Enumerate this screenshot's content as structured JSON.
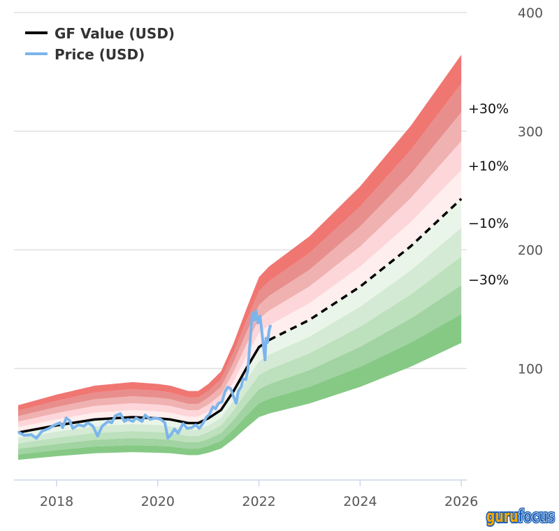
{
  "chart_data": {
    "type": "line",
    "title": "",
    "xlabel": "",
    "ylabel": "",
    "xlim": [
      2017.24,
      2026.0
    ],
    "ylim": [
      6,
      400
    ],
    "y_scale": "linear",
    "grid": "horizontal",
    "legend_placement": "top-left",
    "x_ticks": [
      "2018",
      "2020",
      "2022",
      "2024",
      "2026"
    ],
    "x_tick_values": [
      2018,
      2020,
      2022,
      2024,
      2026
    ],
    "y_ticks": [
      "100",
      "200",
      "300",
      "400"
    ],
    "y_tick_values": [
      100,
      200,
      300,
      400
    ],
    "band_labels": [
      {
        "text": "+30%",
        "multiplier": 1.3
      },
      {
        "text": "+10%",
        "multiplier": 1.1
      },
      {
        "text": "−10%",
        "multiplier": 0.9
      },
      {
        "text": "−30%",
        "multiplier": 0.7
      }
    ],
    "band_multipliers": [
      0.5,
      0.6,
      0.7,
      0.8,
      0.9,
      1.0,
      1.1,
      1.2,
      1.3,
      1.4,
      1.5
    ],
    "band_colors": [
      "#85c985",
      "#a2d3a2",
      "#bde0bd",
      "#d4ead4",
      "#eaf5ea",
      "#ffeeee",
      "#fdd6da",
      "#f0b1b1",
      "#e88e8c",
      "#f07672"
    ],
    "series": [
      {
        "name": "GF Value (USD)",
        "color": "#000000",
        "projection_start": 2022.2,
        "x": [
          2017.24,
          2018.0,
          2018.75,
          2019.5,
          2020.0,
          2020.25,
          2020.6,
          2020.8,
          2021.0,
          2021.25,
          2021.5,
          2021.75,
          2022.0,
          2022.2,
          2023.0,
          2024.0,
          2025.0,
          2026.0
        ],
        "y": [
          46,
          52,
          57,
          59,
          58,
          57,
          54,
          54,
          58,
          65,
          81,
          100,
          118,
          124,
          141,
          169,
          203,
          243
        ]
      },
      {
        "name": "Price (USD)",
        "color": "#7cb5ec",
        "x": [
          2017.24,
          2017.36,
          2017.5,
          2017.6,
          2017.71,
          2017.85,
          2017.96,
          2018.07,
          2018.12,
          2018.19,
          2018.26,
          2018.32,
          2018.43,
          2018.54,
          2018.62,
          2018.72,
          2018.81,
          2018.9,
          2019.02,
          2019.09,
          2019.16,
          2019.26,
          2019.34,
          2019.41,
          2019.51,
          2019.57,
          2019.69,
          2019.75,
          2019.85,
          2019.95,
          2020.06,
          2020.14,
          2020.2,
          2020.25,
          2020.33,
          2020.4,
          2020.5,
          2020.58,
          2020.67,
          2020.75,
          2020.82,
          2020.89,
          2020.96,
          2021.02,
          2021.09,
          2021.14,
          2021.2,
          2021.27,
          2021.33,
          2021.38,
          2021.44,
          2021.49,
          2021.55,
          2021.59,
          2021.65,
          2021.69,
          2021.74,
          2021.78,
          2021.83,
          2021.87,
          2021.91,
          2021.94,
          2021.98,
          2022.02,
          2022.05,
          2022.09,
          2022.12,
          2022.14,
          2022.17,
          2022.2,
          2022.23
        ],
        "y": [
          46.5,
          43.6,
          44.2,
          41.2,
          47.1,
          49.5,
          52.4,
          54.2,
          50.1,
          58.3,
          56.0,
          49.5,
          52.4,
          51.3,
          54.2,
          51.3,
          43.0,
          51.3,
          55.4,
          54.2,
          60.1,
          61.9,
          55.4,
          57.1,
          55.4,
          58.3,
          55.4,
          60.7,
          57.1,
          58.3,
          57.1,
          54.2,
          41.2,
          43.6,
          48.9,
          45.4,
          53.6,
          49.5,
          50.1,
          52.4,
          49.5,
          53.6,
          58.9,
          61.3,
          67.7,
          66.0,
          70.7,
          71.9,
          80.7,
          84.2,
          83.1,
          77.2,
          70.7,
          80.7,
          84.8,
          91.3,
          90.7,
          98.4,
          125.5,
          146.7,
          140.8,
          148.5,
          138.4,
          144.3,
          133.7,
          118.4,
          107.2,
          125.5,
          121.9,
          132.0,
          136.7
        ]
      }
    ]
  },
  "logo": {
    "part1": "guru",
    "part2": "focus",
    "color1": "#f5a800",
    "color2": "#1b5fb5"
  }
}
